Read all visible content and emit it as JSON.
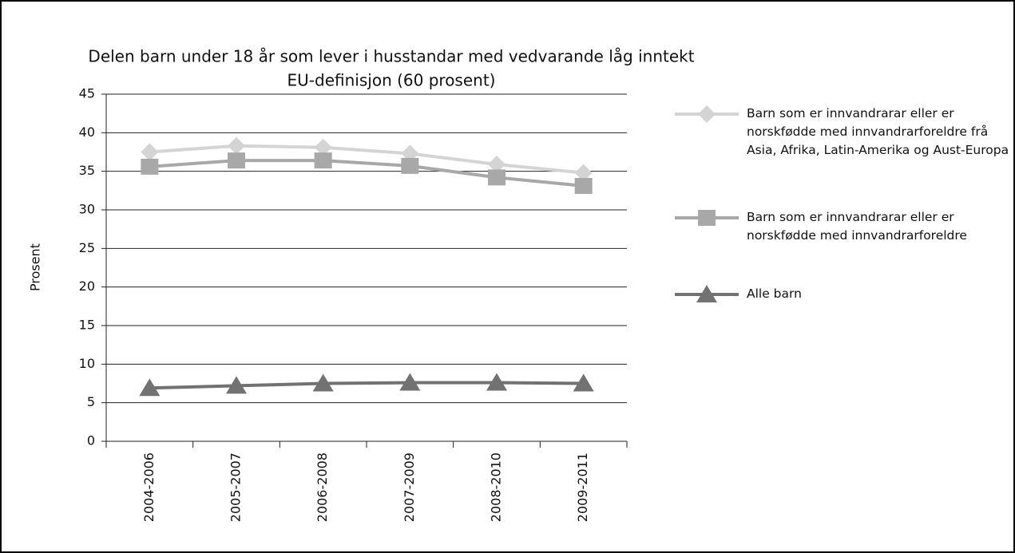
{
  "chart_data": {
    "type": "line",
    "title": "Delen barn under 18 år som lever i husstandar med vedvarande låg inntekt",
    "subtitle": "EU-definisjon (60 prosent)",
    "y_label": "Prosent",
    "categories": [
      "2004-2006",
      "2005-2007",
      "2006-2008",
      "2007-2009",
      "2008-2010",
      "2009-2011"
    ],
    "series": [
      {
        "name": "Barn som er innvandrarar eller er norskfødde med innvandrarforeldre frå Asia, Afrika, Latin-Amerika og Aust-Europa",
        "color": "#d4d4d4",
        "marker": "diamond",
        "values": [
          37.5,
          38.3,
          38.1,
          37.3,
          35.9,
          34.8
        ]
      },
      {
        "name": "Barn som er innvandrarar eller er norskfødde med innvandrarforeldre",
        "color": "#a8a8a8",
        "marker": "square",
        "values": [
          35.6,
          36.4,
          36.4,
          35.7,
          34.2,
          33.1
        ]
      },
      {
        "name": "Alle barn",
        "color": "#727272",
        "marker": "triangle",
        "values": [
          6.9,
          7.2,
          7.5,
          7.6,
          7.6,
          7.5
        ]
      }
    ],
    "ylim": [
      0,
      45
    ],
    "yticks": [
      0,
      5,
      10,
      15,
      20,
      25,
      30,
      35,
      40,
      45
    ],
    "grid": true,
    "legend": "right"
  }
}
